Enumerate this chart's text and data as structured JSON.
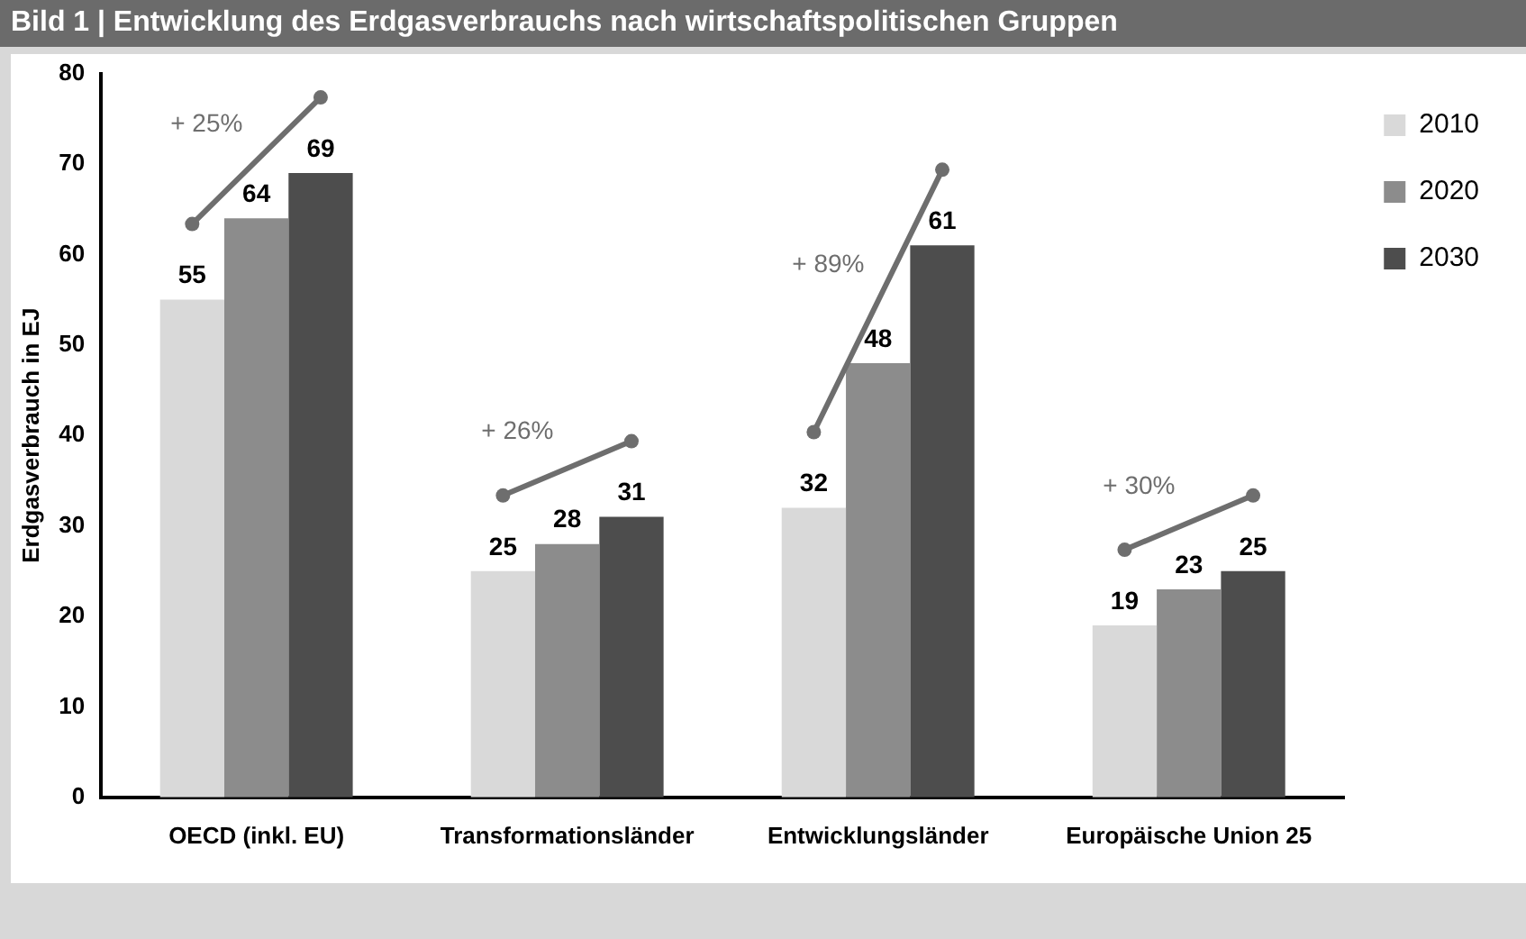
{
  "chart_data": {
    "type": "bar",
    "title": "Bild 1 | Entwicklung des Erdgasverbrauchs nach wirtschaftspolitischen Gruppen",
    "ylabel": "Erdgasverbrauch in EJ",
    "categories": [
      "OECD (inkl. EU)",
      "Transformationsländer",
      "Entwicklungsländer",
      "Europäische Union 25"
    ],
    "series": [
      {
        "name": "2010",
        "color": "#d9d9d9",
        "values": [
          55,
          25,
          32,
          19
        ]
      },
      {
        "name": "2020",
        "color": "#8c8c8c",
        "values": [
          64,
          28,
          48,
          23
        ]
      },
      {
        "name": "2030",
        "color": "#4d4d4d",
        "values": [
          69,
          31,
          61,
          25
        ]
      }
    ],
    "annotations": [
      "+ 25%",
      "+ 26%",
      "+ 89%",
      "+ 30%"
    ],
    "ylim": [
      0,
      80
    ],
    "yticks": [
      0,
      10,
      20,
      30,
      40,
      50,
      60,
      70,
      80
    ],
    "grid": false,
    "legend": "top right",
    "data_labels": true
  }
}
